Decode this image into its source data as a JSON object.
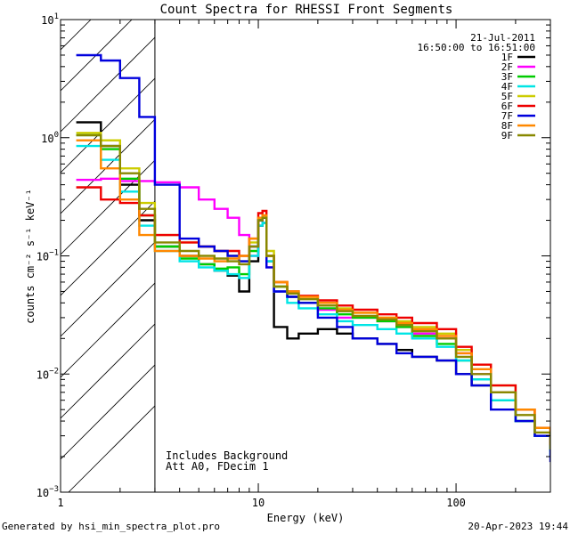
{
  "chart_data": {
    "type": "line",
    "title": "Count Spectra for RHESSI Front Segments",
    "xlabel": "Energy (keV)",
    "ylabel": "counts cm⁻² s⁻¹ keV⁻¹",
    "xscale": "log",
    "yscale": "log",
    "xlim": [
      1,
      300
    ],
    "ylim": [
      0.001,
      10
    ],
    "x_ticks": [
      {
        "v": 1,
        "label": "1"
      },
      {
        "v": 10,
        "label": "10"
      },
      {
        "v": 100,
        "label": "100"
      }
    ],
    "y_ticks": [
      {
        "v": 0.001,
        "base": "10",
        "exp": "−3"
      },
      {
        "v": 0.01,
        "base": "10",
        "exp": "−2"
      },
      {
        "v": 0.1,
        "base": "10",
        "exp": "−1"
      },
      {
        "v": 1,
        "base": "10",
        "exp": "0"
      },
      {
        "v": 10,
        "base": "10",
        "exp": "1"
      }
    ],
    "date": "21-Jul-2011",
    "time_range": "16:50:00 to 16:51:00",
    "excluded_region_max_kev": 3,
    "notes": [
      "Includes Background",
      "Att A0, FDecim 1"
    ],
    "energies": [
      1.2,
      1.6,
      2.0,
      2.5,
      3,
      4,
      5,
      6,
      7,
      8,
      9,
      10,
      10.5,
      11,
      12,
      14,
      16,
      20,
      25,
      30,
      40,
      50,
      60,
      80,
      100,
      120,
      150,
      200,
      250,
      300
    ],
    "series": [
      {
        "name": "1F",
        "color": "#000000",
        "values": [
          1.35,
          0.85,
          0.4,
          0.2,
          0.12,
          0.1,
          0.085,
          0.075,
          0.068,
          0.05,
          0.09,
          0.18,
          0.19,
          0.09,
          0.025,
          0.02,
          0.022,
          0.024,
          0.022,
          0.02,
          0.018,
          0.016,
          0.014,
          0.013,
          0.01,
          0.008,
          0.006,
          0.004,
          0.003,
          0.0025
        ]
      },
      {
        "name": "2F",
        "color": "#ff00ff",
        "values": [
          0.44,
          0.45,
          0.43,
          0.43,
          0.42,
          0.38,
          0.3,
          0.25,
          0.21,
          0.15,
          0.1,
          0.2,
          0.21,
          0.08,
          0.05,
          0.045,
          0.04,
          0.035,
          0.03,
          0.03,
          0.028,
          0.025,
          0.022,
          0.02,
          0.015,
          0.01,
          0.007,
          0.005,
          0.003,
          0.0025
        ]
      },
      {
        "name": "3F",
        "color": "#00cc00",
        "values": [
          1.05,
          0.8,
          0.45,
          0.22,
          0.12,
          0.095,
          0.085,
          0.078,
          0.08,
          0.07,
          0.11,
          0.2,
          0.21,
          0.1,
          0.055,
          0.045,
          0.04,
          0.036,
          0.032,
          0.03,
          0.028,
          0.025,
          0.021,
          0.018,
          0.013,
          0.009,
          0.006,
          0.004,
          0.003,
          0.0022
        ]
      },
      {
        "name": "4F",
        "color": "#00e5e5",
        "values": [
          0.85,
          0.65,
          0.35,
          0.18,
          0.11,
          0.09,
          0.08,
          0.075,
          0.07,
          0.065,
          0.1,
          0.18,
          0.19,
          0.09,
          0.05,
          0.04,
          0.036,
          0.032,
          0.028,
          0.026,
          0.024,
          0.022,
          0.02,
          0.017,
          0.013,
          0.009,
          0.006,
          0.004,
          0.003,
          0.002
        ]
      },
      {
        "name": "5F",
        "color": "#cccc00",
        "values": [
          1.1,
          0.95,
          0.55,
          0.28,
          0.15,
          0.13,
          0.12,
          0.11,
          0.1,
          0.09,
          0.13,
          0.21,
          0.22,
          0.11,
          0.06,
          0.05,
          0.045,
          0.04,
          0.036,
          0.033,
          0.03,
          0.028,
          0.025,
          0.022,
          0.016,
          0.012,
          0.008,
          0.005,
          0.0035,
          0.0025
        ]
      },
      {
        "name": "6F",
        "color": "#ee0000",
        "values": [
          0.38,
          0.3,
          0.28,
          0.22,
          0.15,
          0.13,
          0.12,
          0.11,
          0.11,
          0.1,
          0.14,
          0.23,
          0.24,
          0.1,
          0.06,
          0.05,
          0.046,
          0.042,
          0.038,
          0.035,
          0.032,
          0.03,
          0.027,
          0.024,
          0.017,
          0.012,
          0.008,
          0.005,
          0.0035,
          0.0025
        ]
      },
      {
        "name": "7F",
        "color": "#0000dd",
        "values": [
          5.0,
          4.5,
          3.2,
          1.5,
          0.4,
          0.14,
          0.12,
          0.11,
          0.1,
          0.09,
          0.12,
          0.2,
          0.21,
          0.08,
          0.05,
          0.045,
          0.04,
          0.03,
          0.025,
          0.02,
          0.018,
          0.015,
          0.014,
          0.013,
          0.01,
          0.008,
          0.005,
          0.004,
          0.003,
          0.0018
        ]
      },
      {
        "name": "8F",
        "color": "#ff8800",
        "values": [
          0.95,
          0.55,
          0.3,
          0.15,
          0.11,
          0.1,
          0.095,
          0.09,
          0.095,
          0.1,
          0.14,
          0.21,
          0.22,
          0.1,
          0.06,
          0.05,
          0.045,
          0.04,
          0.035,
          0.033,
          0.03,
          0.027,
          0.024,
          0.021,
          0.015,
          0.011,
          0.007,
          0.005,
          0.0035,
          0.0025
        ]
      },
      {
        "name": "9F",
        "color": "#888800",
        "values": [
          1.05,
          0.85,
          0.5,
          0.25,
          0.13,
          0.11,
          0.1,
          0.095,
          0.09,
          0.085,
          0.12,
          0.2,
          0.21,
          0.1,
          0.055,
          0.048,
          0.043,
          0.038,
          0.034,
          0.031,
          0.029,
          0.026,
          0.023,
          0.02,
          0.014,
          0.01,
          0.007,
          0.0045,
          0.0032,
          0.0023
        ]
      }
    ]
  },
  "footer": {
    "generated_by": "Generated by hsi_min_spectra_plot.pro",
    "timestamp": "20-Apr-2023 19:44"
  }
}
